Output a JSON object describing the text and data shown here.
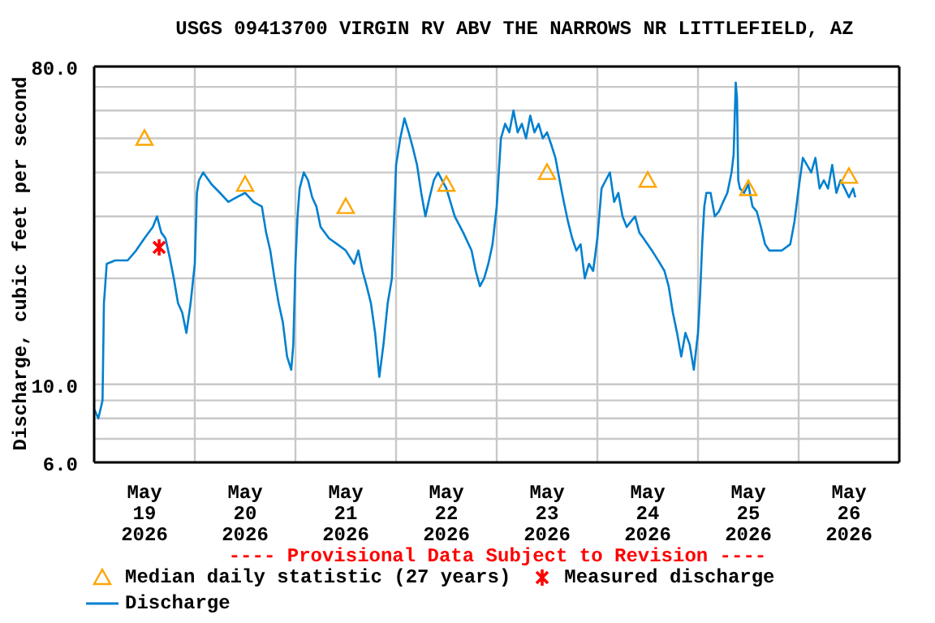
{
  "chart_data": {
    "type": "line",
    "title": "USGS 09413700 VIRGIN RV ABV THE NARROWS NR LITTLEFIELD, AZ",
    "ylabel": "Discharge, cubic feet per second",
    "log": "y",
    "grid": true,
    "legend": "bottom",
    "annotations": [
      "---- Provisional Data Subject to Revision ----"
    ],
    "xlim": [
      "2026-05-19T00:00",
      "2026-05-27T00:00"
    ],
    "xticks": [
      {
        "value": "2026-05-19T00:00",
        "label": null
      },
      {
        "value": "2026-05-19T12:00",
        "label": "May\n19\n2026"
      },
      {
        "value": "2026-05-20T00:00",
        "label": null
      },
      {
        "value": "2026-05-20T12:00",
        "label": "May\n20\n2026"
      },
      {
        "value": "2026-05-21T00:00",
        "label": null
      },
      {
        "value": "2026-05-21T12:00",
        "label": "May\n21\n2026"
      },
      {
        "value": "2026-05-22T00:00",
        "label": null
      },
      {
        "value": "2026-05-22T12:00",
        "label": "May\n22\n2026"
      },
      {
        "value": "2026-05-23T00:00",
        "label": null
      },
      {
        "value": "2026-05-23T12:00",
        "label": "May\n23\n2026"
      },
      {
        "value": "2026-05-24T00:00",
        "label": null
      },
      {
        "value": "2026-05-24T12:00",
        "label": "May\n24\n2026"
      },
      {
        "value": "2026-05-25T00:00",
        "label": null
      },
      {
        "value": "2026-05-25T12:00",
        "label": "May\n25\n2026"
      },
      {
        "value": "2026-05-26T00:00",
        "label": null
      },
      {
        "value": "2026-05-26T12:00",
        "label": "May\n26\n2026"
      },
      {
        "value": "2026-05-27T00:00",
        "label": null
      }
    ],
    "ylim": [
      6,
      80
    ],
    "yticks": [
      {
        "value": 6,
        "label": "6.0"
      },
      {
        "value": 7,
        "label": null
      },
      {
        "value": 8,
        "label": null
      },
      {
        "value": 9,
        "label": null
      },
      {
        "value": 10,
        "label": "10.0"
      },
      {
        "value": 20,
        "label": null
      },
      {
        "value": 30,
        "label": null
      },
      {
        "value": 40,
        "label": null
      },
      {
        "value": 50,
        "label": null
      },
      {
        "value": 60,
        "label": null
      },
      {
        "value": 70,
        "label": null
      },
      {
        "value": 80,
        "label": "80.0"
      }
    ],
    "series": [
      {
        "name": "Median daily statistic (27 years)",
        "type": "scatter",
        "marker": "triangle",
        "color": "#ffa500",
        "x": [
          "2026-05-19T12:00",
          "2026-05-20T12:00",
          "2026-05-21T12:00",
          "2026-05-22T12:00",
          "2026-05-23T12:00",
          "2026-05-24T12:00",
          "2026-05-25T12:00",
          "2026-05-26T12:00"
        ],
        "values": [
          50,
          37,
          32,
          37,
          40,
          38,
          36,
          39
        ]
      },
      {
        "name": "Measured discharge",
        "type": "scatter",
        "marker": "cross",
        "color": "#ff0000",
        "x": [
          "2026-05-19T15:30"
        ],
        "values": [
          24.5
        ]
      },
      {
        "name": "Discharge",
        "type": "line",
        "marker": "none",
        "color": "#0080d0",
        "x": [
          "2026-05-19T00:00",
          "2026-05-19T01:00",
          "2026-05-19T02:00",
          "2026-05-19T02:20",
          "2026-05-19T03:00",
          "2026-05-19T05:00",
          "2026-05-19T08:00",
          "2026-05-19T10:00",
          "2026-05-19T12:00",
          "2026-05-19T14:00",
          "2026-05-19T15:00",
          "2026-05-19T16:00",
          "2026-05-19T17:00",
          "2026-05-19T18:00",
          "2026-05-19T19:00",
          "2026-05-19T20:00",
          "2026-05-19T21:00",
          "2026-05-19T22:00",
          "2026-05-19T23:00",
          "2026-05-20T00:00",
          "2026-05-20T00:30",
          "2026-05-20T01:00",
          "2026-05-20T02:00",
          "2026-05-20T04:00",
          "2026-05-20T06:00",
          "2026-05-20T08:00",
          "2026-05-20T10:00",
          "2026-05-20T12:00",
          "2026-05-20T14:00",
          "2026-05-20T16:00",
          "2026-05-20T17:00",
          "2026-05-20T18:00",
          "2026-05-20T19:00",
          "2026-05-20T20:00",
          "2026-05-20T21:00",
          "2026-05-20T22:00",
          "2026-05-20T23:00",
          "2026-05-20T23:30",
          "2026-05-21T00:00",
          "2026-05-21T00:30",
          "2026-05-21T01:00",
          "2026-05-21T02:00",
          "2026-05-21T03:00",
          "2026-05-21T04:00",
          "2026-05-21T05:00",
          "2026-05-21T06:00",
          "2026-05-21T08:00",
          "2026-05-21T10:00",
          "2026-05-21T12:00",
          "2026-05-21T14:00",
          "2026-05-21T15:00",
          "2026-05-21T16:00",
          "2026-05-21T17:00",
          "2026-05-21T18:00",
          "2026-05-21T19:00",
          "2026-05-21T20:00",
          "2026-05-21T21:00",
          "2026-05-21T22:00",
          "2026-05-21T23:00",
          "2026-05-22T00:00",
          "2026-05-22T01:00",
          "2026-05-22T02:00",
          "2026-05-22T03:00",
          "2026-05-22T04:00",
          "2026-05-22T05:00",
          "2026-05-22T06:00",
          "2026-05-22T07:00",
          "2026-05-22T08:00",
          "2026-05-22T09:00",
          "2026-05-22T10:00",
          "2026-05-22T12:00",
          "2026-05-22T14:00",
          "2026-05-22T16:00",
          "2026-05-22T18:00",
          "2026-05-22T19:00",
          "2026-05-22T20:00",
          "2026-05-22T21:00",
          "2026-05-22T22:00",
          "2026-05-22T23:00",
          "2026-05-23T00:00",
          "2026-05-23T00:30",
          "2026-05-23T01:00",
          "2026-05-23T02:00",
          "2026-05-23T03:00",
          "2026-05-23T04:00",
          "2026-05-23T05:00",
          "2026-05-23T06:00",
          "2026-05-23T07:00",
          "2026-05-23T08:00",
          "2026-05-23T09:00",
          "2026-05-23T10:00",
          "2026-05-23T11:00",
          "2026-05-23T12:00",
          "2026-05-23T13:00",
          "2026-05-23T14:00",
          "2026-05-23T15:00",
          "2026-05-23T16:00",
          "2026-05-23T17:00",
          "2026-05-23T18:00",
          "2026-05-23T19:00",
          "2026-05-23T20:00",
          "2026-05-23T21:00",
          "2026-05-23T22:00",
          "2026-05-23T23:00",
          "2026-05-24T00:00",
          "2026-05-24T01:00",
          "2026-05-24T02:00",
          "2026-05-24T03:00",
          "2026-05-24T04:00",
          "2026-05-24T05:00",
          "2026-05-24T06:00",
          "2026-05-24T07:00",
          "2026-05-24T08:00",
          "2026-05-24T09:00",
          "2026-05-24T10:00",
          "2026-05-24T11:00",
          "2026-05-24T12:00",
          "2026-05-24T13:00",
          "2026-05-24T14:00",
          "2026-05-24T15:00",
          "2026-05-24T16:00",
          "2026-05-24T17:00",
          "2026-05-24T18:00",
          "2026-05-24T19:00",
          "2026-05-24T20:00",
          "2026-05-24T21:00",
          "2026-05-24T22:00",
          "2026-05-24T23:00",
          "2026-05-25T00:00",
          "2026-05-25T00:30",
          "2026-05-25T01:00",
          "2026-05-25T01:30",
          "2026-05-25T02:00",
          "2026-05-25T03:00",
          "2026-05-25T04:00",
          "2026-05-25T05:00",
          "2026-05-25T06:00",
          "2026-05-25T07:00",
          "2026-05-25T08:00",
          "2026-05-25T08:30",
          "2026-05-25T09:00",
          "2026-05-25T09:18",
          "2026-05-25T09:36",
          "2026-05-25T10:00",
          "2026-05-25T11:00",
          "2026-05-25T12:00",
          "2026-05-25T13:00",
          "2026-05-25T14:00",
          "2026-05-25T15:00",
          "2026-05-25T16:00",
          "2026-05-25T17:00",
          "2026-05-25T18:00",
          "2026-05-25T20:00",
          "2026-05-25T22:00",
          "2026-05-25T23:00",
          "2026-05-26T00:00",
          "2026-05-26T01:00",
          "2026-05-26T02:00",
          "2026-05-26T03:00",
          "2026-05-26T04:00",
          "2026-05-26T05:00",
          "2026-05-26T06:00",
          "2026-05-26T07:00",
          "2026-05-26T08:00",
          "2026-05-26T09:00",
          "2026-05-26T10:00",
          "2026-05-26T11:00",
          "2026-05-26T12:00",
          "2026-05-26T13:00",
          "2026-05-26T13:30"
        ],
        "values": [
          8.5,
          8,
          9,
          17,
          22,
          22.5,
          22.5,
          24,
          26,
          28,
          30,
          27,
          26,
          23,
          20,
          17,
          16,
          14,
          17,
          22,
          35,
          38,
          40,
          37,
          35,
          33,
          34,
          35,
          33,
          32,
          27,
          24,
          20,
          17,
          15,
          12,
          11,
          13,
          22,
          30,
          36,
          40,
          38,
          34,
          32,
          28,
          26,
          25,
          24,
          22,
          24,
          21,
          19,
          17,
          14,
          10.5,
          13,
          17,
          20,
          42,
          50,
          57,
          52,
          47,
          42,
          35,
          30,
          34,
          38,
          40,
          36,
          30,
          27,
          24,
          21,
          19,
          20,
          22,
          25,
          32,
          40,
          50,
          55,
          52,
          60,
          52,
          55,
          50,
          58,
          52,
          55,
          50,
          52,
          48,
          44,
          38,
          33,
          29,
          26,
          24,
          25,
          20,
          22,
          21,
          26,
          36,
          38,
          40,
          33,
          35,
          30,
          28,
          29,
          30,
          27,
          26,
          25,
          24,
          23,
          22,
          21,
          19,
          16,
          14,
          12,
          14,
          13,
          11,
          14,
          18,
          25,
          32,
          35,
          35,
          30,
          31,
          33,
          35,
          40,
          45,
          72,
          65,
          38,
          36,
          35,
          37,
          32,
          31,
          28,
          25,
          24,
          24,
          24,
          25,
          29,
          36,
          44,
          42,
          40,
          44,
          36,
          38,
          36,
          42,
          35,
          38,
          36,
          34,
          36,
          34
        ]
      }
    ]
  }
}
